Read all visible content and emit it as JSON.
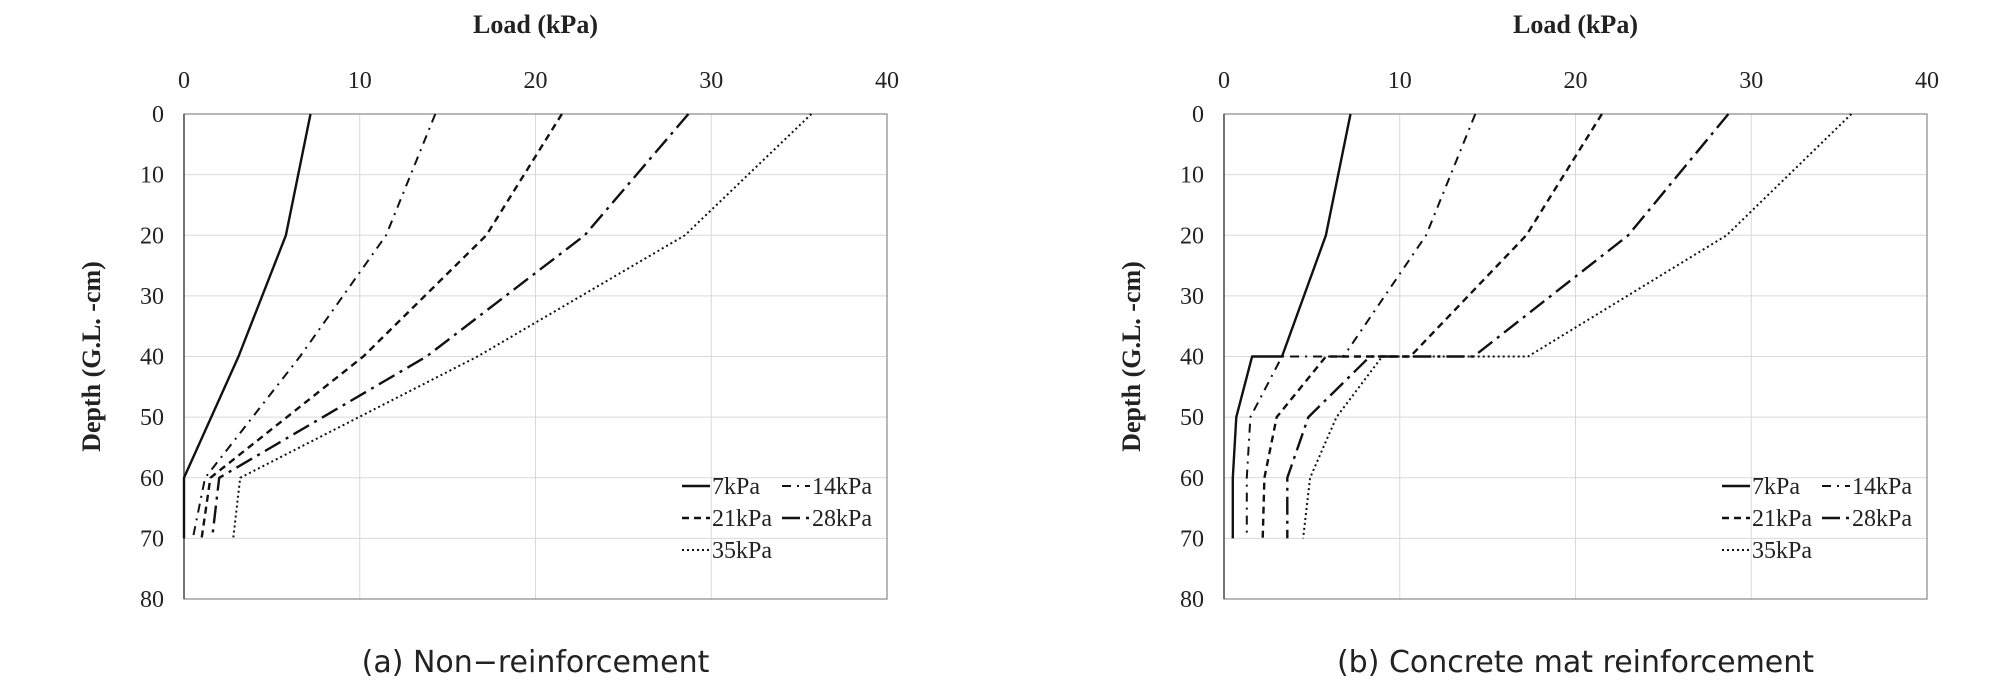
{
  "chart_data": [
    {
      "type": "line",
      "orientation": "depth-profile",
      "xlabel": "Load (kPa)",
      "ylabel": "Depth (G.L. -cm)",
      "caption": "(a) Non−reinforcement",
      "xlim": [
        0,
        40
      ],
      "ylim": [
        0,
        80
      ],
      "x_axis_position": "top",
      "y_axis_inverted": true,
      "x_ticks": [
        "0",
        "10",
        "20",
        "30",
        "40"
      ],
      "y_ticks": [
        "0",
        "10",
        "20",
        "30",
        "40",
        "50",
        "60",
        "70",
        "80"
      ],
      "grid": true,
      "legend_position": "bottom-right",
      "series": [
        {
          "name": "7kPa",
          "dash": "solid",
          "points": [
            [
              7.2,
              0
            ],
            [
              5.8,
              20
            ],
            [
              3.1,
              40
            ],
            [
              0,
              60
            ],
            [
              0,
              70
            ]
          ]
        },
        {
          "name": "14kPa",
          "dash": "dash-dot",
          "points": [
            [
              14.3,
              0
            ],
            [
              11.5,
              20
            ],
            [
              6.6,
              40
            ],
            [
              1.2,
              60
            ],
            [
              0.5,
              70
            ]
          ]
        },
        {
          "name": "21kPa",
          "dash": "dash",
          "points": [
            [
              21.5,
              0
            ],
            [
              17.2,
              20
            ],
            [
              10.2,
              40
            ],
            [
              1.5,
              60
            ],
            [
              1.0,
              70
            ]
          ]
        },
        {
          "name": "28kPa",
          "dash": "long-dash-dot",
          "points": [
            [
              28.7,
              0
            ],
            [
              22.8,
              20
            ],
            [
              13.8,
              40
            ],
            [
              2.0,
              60
            ],
            [
              1.6,
              70
            ]
          ]
        },
        {
          "name": "35kPa",
          "dash": "dot",
          "points": [
            [
              35.7,
              0
            ],
            [
              28.5,
              20
            ],
            [
              16.7,
              40
            ],
            [
              3.2,
              60
            ],
            [
              2.8,
              70
            ]
          ]
        }
      ]
    },
    {
      "type": "line",
      "orientation": "depth-profile",
      "xlabel": "Load (kPa)",
      "ylabel": "Depth (G.L. -cm)",
      "caption": "(b) Concrete mat reinforcement",
      "xlim": [
        0,
        40
      ],
      "ylim": [
        0,
        80
      ],
      "x_axis_position": "top",
      "y_axis_inverted": true,
      "x_ticks": [
        "0",
        "10",
        "20",
        "30",
        "40"
      ],
      "y_ticks": [
        "0",
        "10",
        "20",
        "30",
        "40",
        "50",
        "60",
        "70",
        "80"
      ],
      "grid": true,
      "legend_position": "bottom-right",
      "series": [
        {
          "name": "7kPa",
          "dash": "solid",
          "points": [
            [
              7.2,
              0
            ],
            [
              5.8,
              20
            ],
            [
              3.3,
              40
            ],
            [
              1.6,
              40
            ],
            [
              0.7,
              50
            ],
            [
              0.5,
              60
            ],
            [
              0.5,
              70
            ]
          ]
        },
        {
          "name": "14kPa",
          "dash": "dash-dot",
          "points": [
            [
              14.3,
              0
            ],
            [
              11.5,
              20
            ],
            [
              6.8,
              40
            ],
            [
              3.3,
              40
            ],
            [
              1.5,
              50
            ],
            [
              1.3,
              60
            ],
            [
              1.3,
              70
            ]
          ]
        },
        {
          "name": "21kPa",
          "dash": "dash",
          "points": [
            [
              21.5,
              0
            ],
            [
              17.2,
              20
            ],
            [
              10.6,
              40
            ],
            [
              5.8,
              40
            ],
            [
              3.0,
              50
            ],
            [
              2.3,
              60
            ],
            [
              2.2,
              70
            ]
          ]
        },
        {
          "name": "28kPa",
          "dash": "long-dash-dot",
          "points": [
            [
              28.7,
              0
            ],
            [
              23.0,
              20
            ],
            [
              14.2,
              40
            ],
            [
              8.3,
              40
            ],
            [
              4.8,
              50
            ],
            [
              3.6,
              60
            ],
            [
              3.6,
              70
            ]
          ]
        },
        {
          "name": "35kPa",
          "dash": "dot",
          "points": [
            [
              35.7,
              0
            ],
            [
              28.6,
              20
            ],
            [
              17.3,
              40
            ],
            [
              9.0,
              40
            ],
            [
              6.4,
              50
            ],
            [
              4.9,
              60
            ],
            [
              4.5,
              70
            ]
          ]
        }
      ]
    }
  ]
}
